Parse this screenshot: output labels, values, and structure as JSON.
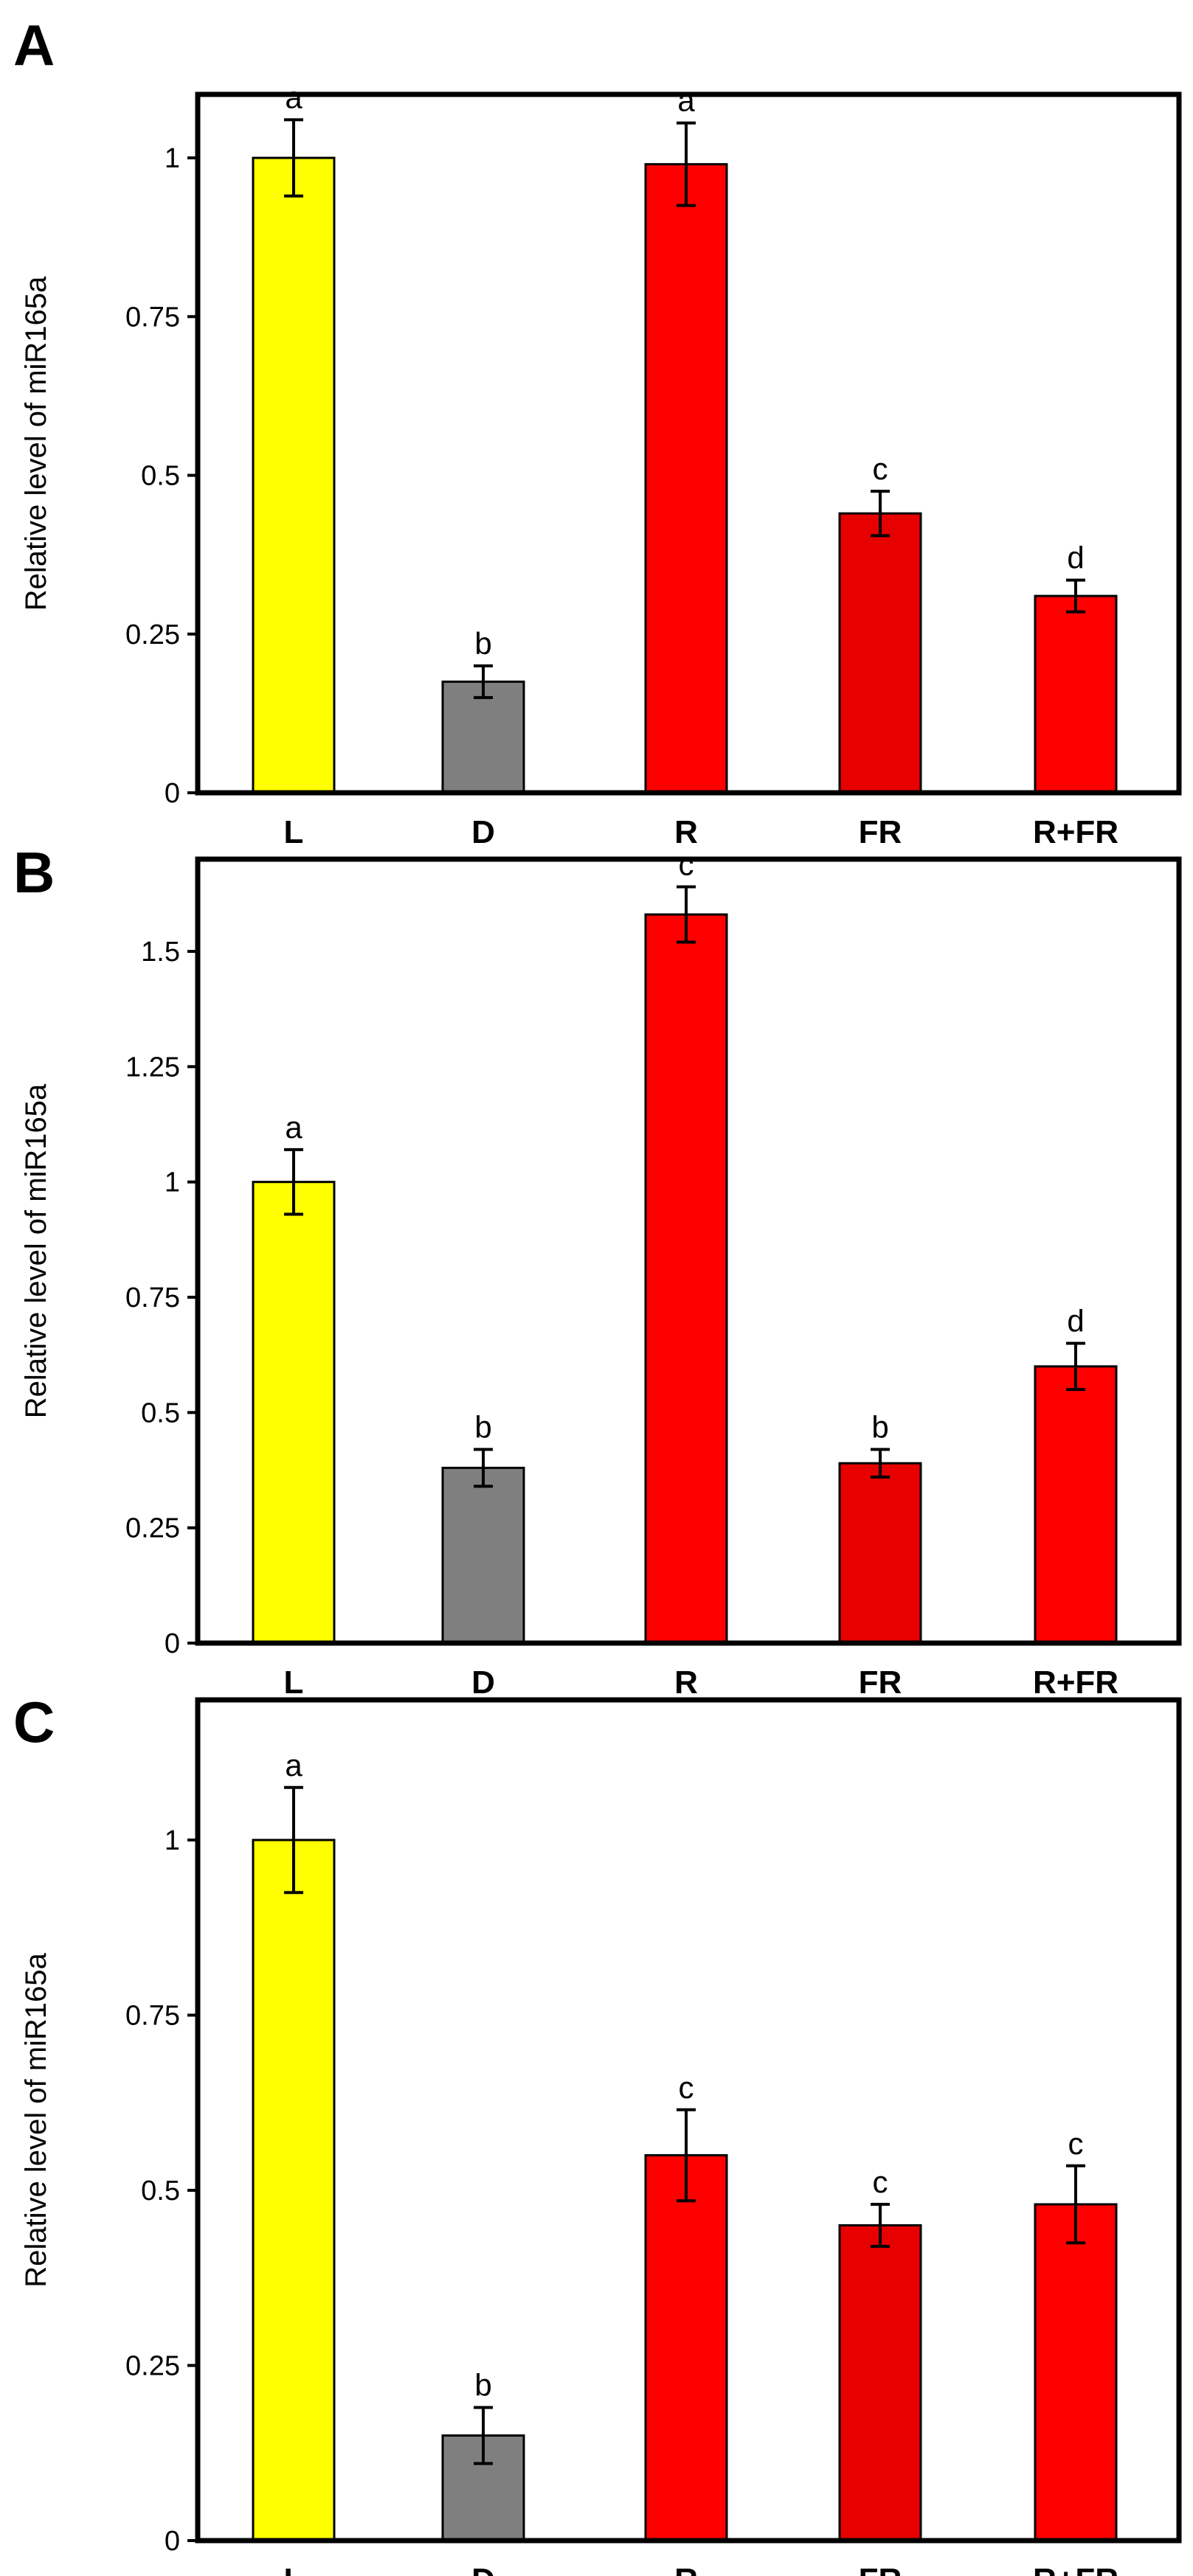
{
  "chart_data": [
    {
      "panel": "A",
      "type": "bar",
      "ylabel": "Relative level of miR165a",
      "ylim": [
        0,
        1.1
      ],
      "yticks": [
        0,
        0.25,
        0.5,
        0.75,
        1
      ],
      "ytick_labels": [
        "0",
        "0.25",
        "0.5",
        "0.75",
        "1"
      ],
      "categories": [
        "L",
        "D",
        "R",
        "FR",
        "R+FR"
      ],
      "values": [
        1.0,
        0.175,
        0.99,
        0.44,
        0.31
      ],
      "errors": [
        0.06,
        0.025,
        0.065,
        0.035,
        0.025
      ],
      "significance": [
        "a",
        "b",
        "a",
        "c",
        "d"
      ],
      "colors": [
        "#ffff00",
        "#7f7f7f",
        "#ff0000",
        "#e60000",
        "#ff0000"
      ],
      "grid": false
    },
    {
      "panel": "B",
      "type": "bar",
      "ylabel": "Relative level of miR165a",
      "ylim": [
        0,
        1.7
      ],
      "yticks": [
        0,
        0.25,
        0.5,
        0.75,
        1,
        1.25,
        1.5
      ],
      "ytick_labels": [
        "0",
        "0.25",
        "0.5",
        "0.75",
        "1",
        "1.25",
        "1.5"
      ],
      "categories": [
        "L",
        "D",
        "R",
        "FR",
        "R+FR"
      ],
      "values": [
        1.0,
        0.38,
        1.58,
        0.39,
        0.6
      ],
      "errors": [
        0.07,
        0.04,
        0.06,
        0.03,
        0.05
      ],
      "significance": [
        "a",
        "b",
        "c",
        "b",
        "d"
      ],
      "colors": [
        "#ffff00",
        "#7f7f7f",
        "#ff0000",
        "#e60000",
        "#ff0000"
      ],
      "grid": false
    },
    {
      "panel": "C",
      "type": "bar",
      "ylabel": "Relative level of miR165a",
      "ylim": [
        0,
        1.2
      ],
      "yticks": [
        0,
        0.25,
        0.5,
        0.75,
        1
      ],
      "ytick_labels": [
        "0",
        "0.25",
        "0.5",
        "0.75",
        "1"
      ],
      "categories": [
        "L",
        "D",
        "R",
        "FR",
        "R+FR"
      ],
      "values": [
        1.0,
        0.15,
        0.55,
        0.45,
        0.48
      ],
      "errors": [
        0.075,
        0.04,
        0.065,
        0.03,
        0.055
      ],
      "significance": [
        "a",
        "b",
        "c",
        "c",
        "c"
      ],
      "colors": [
        "#ffff00",
        "#7f7f7f",
        "#ff0000",
        "#e60000",
        "#ff0000"
      ],
      "grid": false
    }
  ]
}
